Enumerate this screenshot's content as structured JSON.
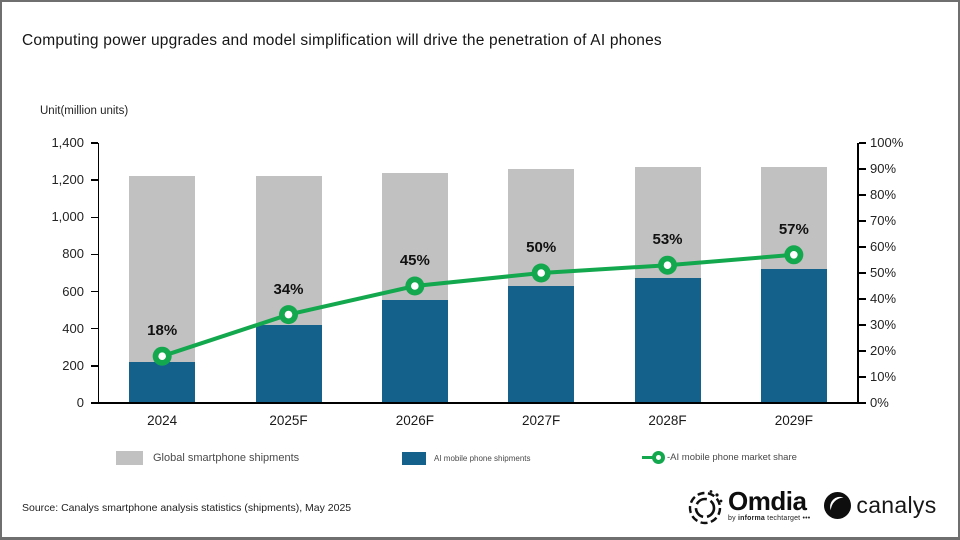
{
  "header": {
    "title": "Computing power upgrades and model simplification will drive the penetration of AI phones"
  },
  "chart_data": {
    "type": "bar",
    "subtype": "bars-with-line-overlay",
    "unit_label": "Unit(million units)",
    "categories": [
      "2024",
      "2025F",
      "2026F",
      "2027F",
      "2028F",
      "2029F"
    ],
    "series": [
      {
        "name": "Global smartphone shipments",
        "type": "bar",
        "axis": "left",
        "color": "#c1c1c1",
        "values": [
          1220,
          1220,
          1240,
          1260,
          1270,
          1270
        ]
      },
      {
        "name": "AI mobile phone shipments",
        "type": "bar",
        "axis": "left",
        "color": "#14618c",
        "values": [
          220,
          420,
          555,
          630,
          675,
          720
        ]
      },
      {
        "name": "AI mobile phone market share",
        "type": "line",
        "axis": "right",
        "color": "#13a84e",
        "values": [
          18,
          34,
          45,
          50,
          53,
          57
        ],
        "point_labels": [
          "18%",
          "34%",
          "45%",
          "50%",
          "53%",
          "57%"
        ]
      }
    ],
    "left_axis": {
      "min": 0,
      "max": 1400,
      "step": 200,
      "tick_labels": [
        "0",
        "200",
        "400",
        "600",
        "800",
        "1,000",
        "1,200",
        "1,400"
      ]
    },
    "right_axis": {
      "min": 0,
      "max": 100,
      "step": 10,
      "tick_labels": [
        "0%",
        "10%",
        "20%",
        "30%",
        "40%",
        "50%",
        "60%",
        "70%",
        "80%",
        "90%",
        "100%"
      ]
    },
    "grid": false,
    "legend_position": "bottom"
  },
  "legend": {
    "items": [
      {
        "label": "Global smartphone shipments"
      },
      {
        "label": "AI mobile phone shipments"
      },
      {
        "label": "-AI mobile phone market share"
      }
    ]
  },
  "footer": {
    "source": "Source: Canalys smartphone analysis statistics (shipments), May 2025"
  },
  "branding": {
    "omdia": {
      "name": "Omdia",
      "tagline_prefix": "by ",
      "tagline_bold": "informa",
      "tagline_suffix": " techtarget •••"
    },
    "canalys": {
      "name": "canalys"
    }
  },
  "colors": {
    "global_bar": "#c1c1c1",
    "ai_bar": "#14618c",
    "share_line": "#13a84e",
    "axis": "#000000",
    "text": "#1a1a1a"
  }
}
